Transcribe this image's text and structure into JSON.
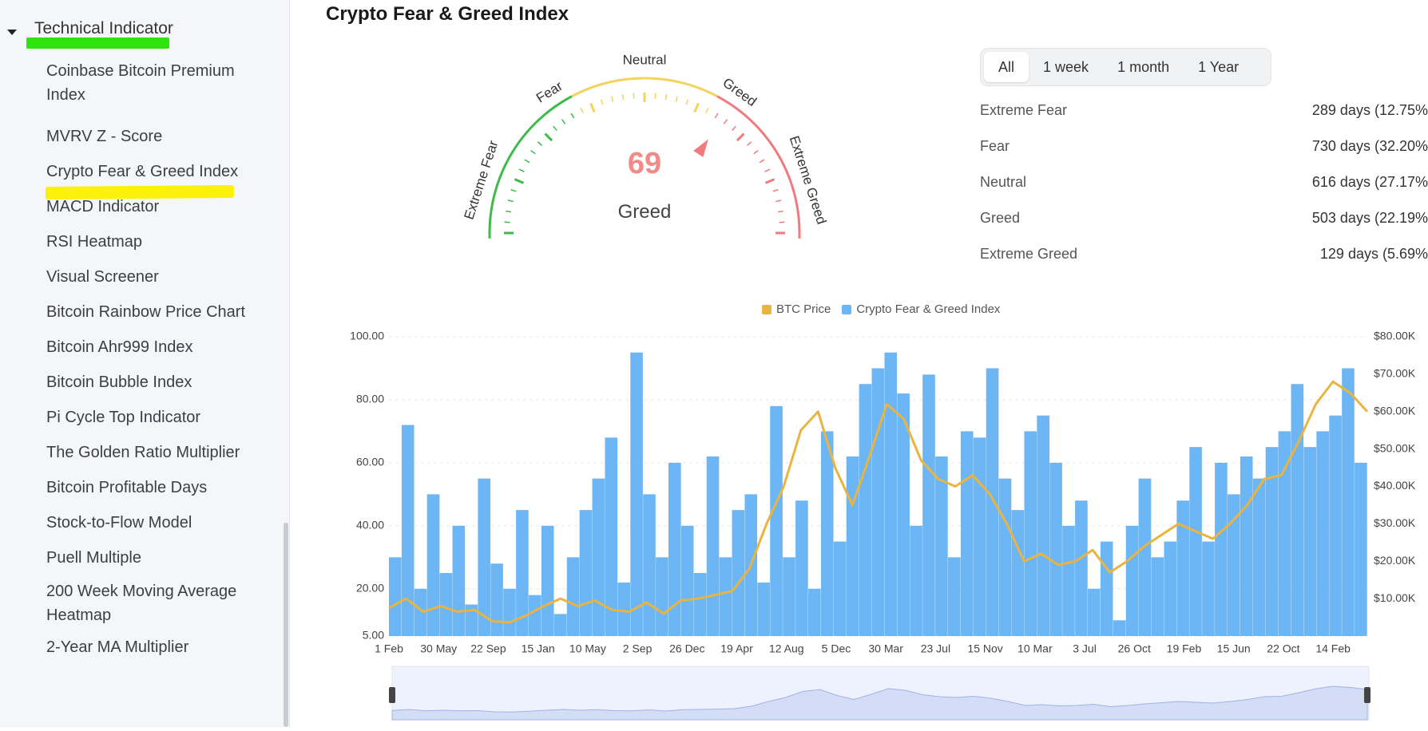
{
  "sidebar": {
    "section_label": "Technical Indicator",
    "items": [
      {
        "label": "Coinbase Bitcoin Premium\nIndex"
      },
      {
        "label": "MVRV Z - Score"
      },
      {
        "label": "Crypto Fear & Greed Index"
      },
      {
        "label": "MACD Indicator"
      },
      {
        "label": "RSI Heatmap"
      },
      {
        "label": "Visual Screener"
      },
      {
        "label": "Bitcoin Rainbow Price Chart"
      },
      {
        "label": "Bitcoin Ahr999 Index"
      },
      {
        "label": "Bitcoin Bubble Index"
      },
      {
        "label": "Pi Cycle Top Indicator"
      },
      {
        "label": "The Golden Ratio Multiplier"
      },
      {
        "label": "Bitcoin Profitable Days"
      },
      {
        "label": "Stock-to-Flow Model"
      },
      {
        "label": "Puell Multiple"
      },
      {
        "label": "200 Week Moving Average\nHeatmap"
      },
      {
        "label": "2-Year MA Multiplier"
      }
    ]
  },
  "main": {
    "title": "Crypto Fear & Greed Index",
    "gauge": {
      "value": "69",
      "status": "Greed",
      "labels": {
        "extreme_fear": "Extreme Fear",
        "fear": "Fear",
        "neutral": "Neutral",
        "greed": "Greed",
        "extreme_greed": "Extreme Greed"
      }
    },
    "tabs": [
      {
        "label": "All",
        "active": true
      },
      {
        "label": "1 week",
        "active": false
      },
      {
        "label": "1 month",
        "active": false
      },
      {
        "label": "1 Year",
        "active": false
      }
    ],
    "stats": [
      {
        "label": "Extreme Fear",
        "value": "289 days (12.75%"
      },
      {
        "label": "Fear",
        "value": "730 days (32.20%"
      },
      {
        "label": "Neutral",
        "value": "616 days (27.17%"
      },
      {
        "label": "Greed",
        "value": "503 days (22.19%"
      },
      {
        "label": "Extreme Greed",
        "value": "129 days (5.69%"
      }
    ]
  },
  "colors": {
    "index_blue": "#6cb6f5",
    "btc_gold": "#e9b440",
    "gauge_green": "#3dbb4a",
    "gauge_yellow": "#f2d35c",
    "gauge_red": "#f17a7e",
    "value_red": "#f28a8a",
    "highlight_green": "#2ee30e",
    "highlight_yellow": "#fbf10a"
  },
  "chart_data": {
    "type": "bar",
    "legend": [
      "BTC Price",
      "Crypto Fear & Greed Index"
    ],
    "legend_position": "top-center",
    "x_ticks": [
      "1 Feb",
      "30 May",
      "22 Sep",
      "15 Jan",
      "10 May",
      "2 Sep",
      "26 Dec",
      "19 Apr",
      "12 Aug",
      "5 Dec",
      "30 Mar",
      "23 Jul",
      "15 Nov",
      "10 Mar",
      "3 Jul",
      "26 Oct",
      "19 Feb",
      "15 Jun",
      "22 Oct",
      "14 Feb"
    ],
    "y_left_ticks": [
      "100.00",
      "80.00",
      "60.00",
      "40.00",
      "20.00",
      "5.00"
    ],
    "y_left_range": [
      5,
      100
    ],
    "y_right_ticks": [
      "$80.00K",
      "$70.00K",
      "$60.00K",
      "$50.00K",
      "$40.00K",
      "$30.00K",
      "$20.00K",
      "$10.00K"
    ],
    "y_right_range": [
      0,
      80000
    ],
    "grid": true,
    "series": [
      {
        "name": "Crypto Fear & Greed Index",
        "kind": "bar",
        "values": [
          30,
          72,
          20,
          50,
          25,
          40,
          15,
          55,
          28,
          20,
          45,
          18,
          40,
          12,
          30,
          45,
          55,
          68,
          22,
          95,
          50,
          30,
          60,
          40,
          25,
          62,
          30,
          45,
          50,
          22,
          78,
          30,
          48,
          20,
          70,
          35,
          62,
          85,
          90,
          95,
          82,
          40,
          88,
          62,
          30,
          70,
          68,
          90,
          55,
          45,
          70,
          75,
          60,
          40,
          48,
          20,
          35,
          10,
          40,
          55,
          30,
          35,
          48,
          65,
          35,
          60,
          50,
          62,
          55,
          65,
          70,
          85,
          65,
          70,
          75,
          90,
          60
        ]
      },
      {
        "name": "BTC Price",
        "kind": "line",
        "values": [
          7500,
          10000,
          6500,
          8000,
          6500,
          7000,
          4000,
          3600,
          5500,
          8000,
          10000,
          8000,
          9500,
          7000,
          6500,
          9000,
          6000,
          9500,
          10000,
          11000,
          12000,
          18000,
          30000,
          40000,
          55000,
          60000,
          45000,
          35000,
          48000,
          62000,
          58000,
          47000,
          42000,
          40000,
          43000,
          38000,
          30000,
          20000,
          22000,
          19000,
          20000,
          23000,
          17000,
          20000,
          24000,
          27000,
          30000,
          28000,
          26000,
          30000,
          35000,
          42000,
          43000,
          52000,
          62000,
          68000,
          65000,
          60000
        ]
      }
    ]
  }
}
